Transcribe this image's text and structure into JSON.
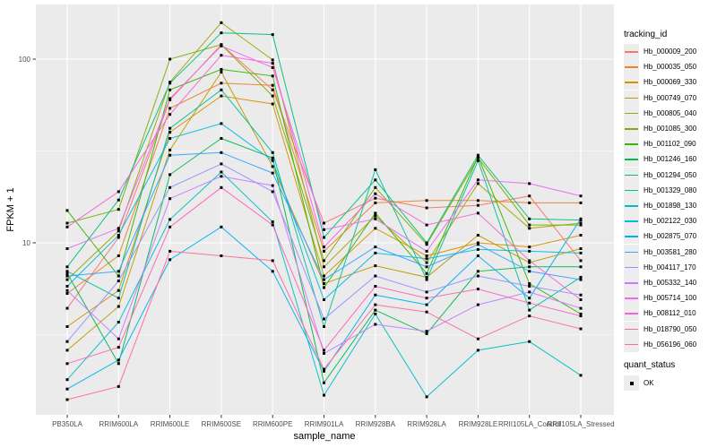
{
  "chart": {
    "panel": {
      "bg": "#ebebeb",
      "grid_color": "#ffffff",
      "tick_color": "#333333",
      "label_color": "#4d4d4d"
    },
    "y_axis": {
      "label": "FPKM + 1",
      "tick_labels": [
        "100",
        "10"
      ],
      "tick_values": [
        100,
        10
      ],
      "minor_values": [
        31.623,
        3.1623
      ]
    },
    "x_axis": {
      "label": "sample_name"
    },
    "legend": {
      "tracking_title": "tracking_id",
      "quant_title": "quant_status",
      "quant_items": [
        {
          "label": "OK",
          "marker": "black-square"
        }
      ]
    }
  },
  "chart_data": {
    "type": "line",
    "title": "",
    "xlabel": "sample_name",
    "ylabel": "FPKM + 1",
    "y_scale": "log10",
    "ylim": [
      1.15,
      200
    ],
    "grid": true,
    "legend_position": "right",
    "point_marker": "small-black-square",
    "categories": [
      "PB350LA",
      "RRIM600LA",
      "RRIM600LE",
      "RRIM600SE",
      "RRIM600PE",
      "RRIM901LA",
      "RRIM928BA",
      "RRIM928LA",
      "RRIM928LE",
      "RRII105LA_Control",
      "RRII105LA_Stressed"
    ],
    "series": [
      {
        "name": "Hb_000009_200",
        "color": "#F8766D",
        "values": [
          4.4,
          10.7,
          60,
          120,
          68,
          12.8,
          17.5,
          15.5,
          16,
          18,
          8.0
        ]
      },
      {
        "name": "Hb_000035_050",
        "color": "#EA8331",
        "values": [
          5.3,
          8.5,
          54,
          74,
          72,
          9.0,
          16.5,
          17,
          17,
          16.5,
          16.5
        ]
      },
      {
        "name": "Hb_000069_330",
        "color": "#D89000",
        "values": [
          3.5,
          5.5,
          40,
          63,
          57,
          6.6,
          12,
          8.5,
          10,
          9.5,
          11
        ]
      },
      {
        "name": "Hb_000749_070",
        "color": "#C09B00",
        "values": [
          2.6,
          4.5,
          32,
          85,
          26,
          6.0,
          7.5,
          6.5,
          11,
          7.8,
          9.3
        ]
      },
      {
        "name": "Hb_000805_040",
        "color": "#A3A500",
        "values": [
          6.3,
          11.6,
          75,
          158,
          99,
          7.4,
          14,
          7.8,
          21,
          12,
          12.8
        ]
      },
      {
        "name": "Hb_001085_300",
        "color": "#7CAE00",
        "values": [
          12.8,
          15.2,
          100,
          120,
          63,
          8.0,
          20,
          9.8,
          29,
          12.5,
          12.5
        ]
      },
      {
        "name": "Hb_001102_090",
        "color": "#39B600",
        "values": [
          15,
          6.6,
          68,
          88,
          81,
          5.7,
          14.5,
          6.8,
          29.5,
          6.0,
          4.1
        ]
      },
      {
        "name": "Hb_001246_160",
        "color": "#00BB4E",
        "values": [
          6.8,
          2.2,
          23.5,
          37,
          29,
          1.73,
          4.3,
          3.2,
          7.0,
          7.4,
          7.4
        ]
      },
      {
        "name": "Hb_001294_050",
        "color": "#00BF7D",
        "values": [
          7.4,
          17.1,
          74,
          139,
          136,
          10.7,
          22,
          10,
          30,
          13.5,
          13.3
        ]
      },
      {
        "name": "Hb_001329_080",
        "color": "#00C1A3",
        "values": [
          7.0,
          5.0,
          42,
          68,
          31,
          3.5,
          25,
          6.3,
          28,
          4.3,
          6.5
        ]
      },
      {
        "name": "Hb_001898_130",
        "color": "#00BFC4",
        "values": [
          1.8,
          3.7,
          13.4,
          24.3,
          13,
          1.48,
          4.1,
          1.45,
          2.6,
          2.9,
          1.9
        ]
      },
      {
        "name": "Hb_002122_030",
        "color": "#00BAE0",
        "values": [
          5.8,
          11,
          37,
          44.6,
          28,
          4.9,
          8.8,
          8.2,
          9.2,
          9.0,
          8.8
        ]
      },
      {
        "name": "Hb_002875_070",
        "color": "#00B0F6",
        "values": [
          1.6,
          2.3,
          8.1,
          12.2,
          7.0,
          2.0,
          5.2,
          4.6,
          8.5,
          5.0,
          13.5
        ]
      },
      {
        "name": "Hb_003581_280",
        "color": "#35A2FF",
        "values": [
          6.6,
          7.0,
          30,
          31,
          24,
          6.3,
          9.5,
          7.4,
          9.8,
          7.0,
          6.3
        ]
      },
      {
        "name": "Hb_004117_170",
        "color": "#9590FF",
        "values": [
          2.9,
          6.2,
          20,
          26.9,
          19,
          3.85,
          6.6,
          5.4,
          6.6,
          5.8,
          5.2
        ]
      },
      {
        "name": "Hb_005332_140",
        "color": "#C77CFF",
        "values": [
          5.5,
          3.0,
          17.4,
          23,
          20.5,
          2.5,
          3.6,
          3.3,
          4.6,
          5.4,
          4.4
        ]
      },
      {
        "name": "Hb_005714_100",
        "color": "#E76BF3",
        "values": [
          9.3,
          12,
          61,
          118,
          90,
          11.8,
          13.5,
          9.0,
          22,
          21,
          18
        ]
      },
      {
        "name": "Hb_008112_010",
        "color": "#FA62DB",
        "values": [
          12.2,
          19,
          50,
          105,
          95,
          9.5,
          18.5,
          12.5,
          14.5,
          8.0,
          4.9
        ]
      },
      {
        "name": "Hb_018790_050",
        "color": "#FF62BC",
        "values": [
          2.2,
          2.7,
          12.2,
          20,
          12.5,
          2.6,
          5.8,
          5.0,
          5.6,
          4.7,
          4.0
        ]
      },
      {
        "name": "Hb_056196_060",
        "color": "#FF6A98",
        "values": [
          1.4,
          1.65,
          9.0,
          8.5,
          8.0,
          2.05,
          4.6,
          4.2,
          3.0,
          4.0,
          3.4
        ]
      }
    ]
  }
}
